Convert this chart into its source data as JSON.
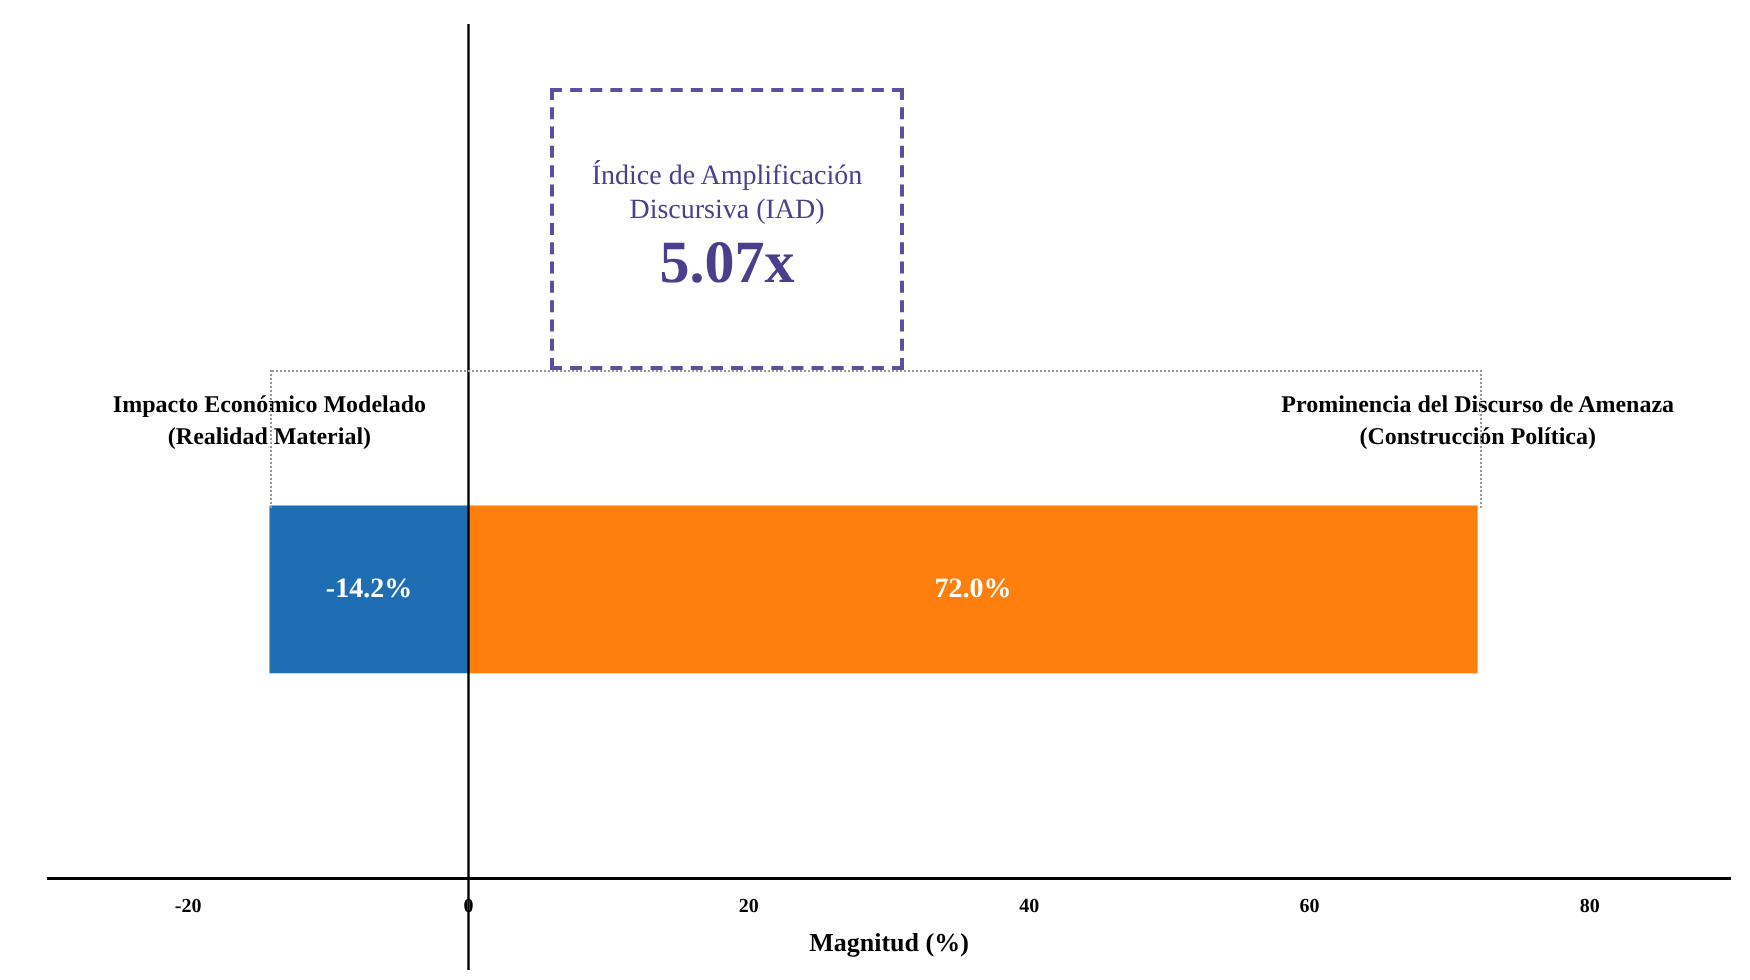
{
  "chart_data": {
    "type": "bar",
    "orientation": "horizontal",
    "stacked": true,
    "categories": [
      null
    ],
    "xlabel": "Magnitud (%)",
    "series": [
      {
        "name": "Impacto Económico Modelado\n(Realidad Material)",
        "color": "#1f6eb3",
        "values": [
          -14.2
        ],
        "value_labels": [
          "-14.2%"
        ]
      },
      {
        "name": "Prominencia del Discurso de Amenaza\n(Construcción Política)",
        "color": "#ff7f0e",
        "values": [
          72.0
        ],
        "value_labels": [
          "72.0%"
        ]
      }
    ],
    "xlim": [
      -30,
      90
    ],
    "xticks": [
      -20,
      0,
      20,
      40,
      60,
      80
    ],
    "grid": false,
    "legend": false,
    "ref_lines": [
      {
        "axis": "x",
        "value": 0,
        "color": "#000000"
      }
    ],
    "annotations": [
      "Índice de Amplificación Discursiva (IAD)",
      "5.07x"
    ]
  }
}
